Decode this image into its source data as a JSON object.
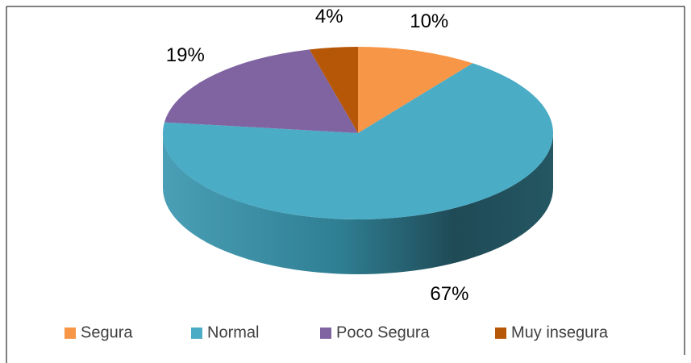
{
  "chart_data": {
    "type": "pie3d",
    "categories": [
      "Segura",
      "Normal",
      "Poco Segura",
      "Muy insegura"
    ],
    "values": [
      10,
      67,
      19,
      4
    ],
    "value_labels": [
      "10%",
      "67%",
      "19%",
      "4%"
    ],
    "colors": [
      "#f79646",
      "#4bacc6",
      "#8064a2",
      "#b65708"
    ],
    "legend": "bottom"
  }
}
